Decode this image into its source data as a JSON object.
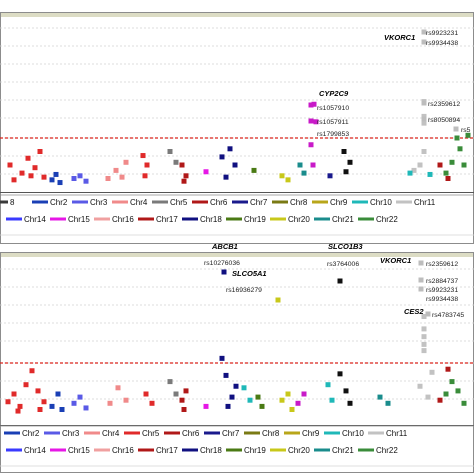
{
  "colors": {
    "threshold": "#d9251c",
    "grid": "#d4d4d4",
    "frame": "#8c8c8c",
    "panel_top_bar": "#dcdcc4",
    "snp_marker": "#bdbdbd"
  },
  "chart_data": [
    {
      "type": "scatter",
      "panel": "top",
      "annotations": [
        {
          "gene": "VKORC1",
          "snps": [
            "rs9923231",
            "rs9934438"
          ]
        },
        {
          "gene": "CYP2C9",
          "snps": [
            "rs1057910",
            "rs1057911",
            "rs1799853"
          ]
        },
        {
          "gene": "",
          "snps": [
            "rs2359612",
            "rs8050894",
            "rs5"
          ]
        }
      ],
      "legend": [
        {
          "name": "8",
          "color": "#3a3a3a"
        },
        {
          "name": "Chr2",
          "color": "#1a3fb5"
        },
        {
          "name": "Chr3",
          "color": "#5a5ae6"
        },
        {
          "name": "Chr4",
          "color": "#f08a8a"
        },
        {
          "name": "Chr5",
          "color": "#7a7a7a"
        },
        {
          "name": "Chr6",
          "color": "#b01818"
        },
        {
          "name": "Chr7",
          "color": "#1a1a8c"
        },
        {
          "name": "Chr8",
          "color": "#7a7a14"
        },
        {
          "name": "Chr9",
          "color": "#b8a61a"
        },
        {
          "name": "Chr10",
          "color": "#1fb8b8"
        },
        {
          "name": "Chr11",
          "color": "#c2c2c2"
        },
        {
          "name": "Chr14",
          "color": "#3a3aff"
        },
        {
          "name": "Chr15",
          "color": "#e617e6"
        },
        {
          "name": "Chr16",
          "color": "#f0a0a0"
        },
        {
          "name": "Chr17",
          "color": "#b01818"
        },
        {
          "name": "Chr18",
          "color": "#101080"
        },
        {
          "name": "Chr19",
          "color": "#4a7a14"
        },
        {
          "name": "Chr20",
          "color": "#c8c81a"
        },
        {
          "name": "Chr21",
          "color": "#1a8c8c"
        },
        {
          "name": "Chr22",
          "color": "#3a8c3a"
        }
      ],
      "series": [
        {
          "chrom": "Chr1",
          "color": "#e02a2a",
          "points": [
            [
              10,
              2.0
            ],
            [
              22,
              1.4
            ],
            [
              28,
              2.5
            ],
            [
              35,
              1.8
            ],
            [
              40,
              3.0
            ],
            [
              44,
              1.1
            ],
            [
              14,
              0.9
            ],
            [
              31,
              1.2
            ]
          ]
        },
        {
          "chrom": "Chr2",
          "color": "#1a3fb5",
          "points": [
            [
              52,
              0.9
            ],
            [
              56,
              1.3
            ],
            [
              60,
              0.7
            ]
          ]
        },
        {
          "chrom": "Chr3",
          "color": "#5a5ae6",
          "points": [
            [
              74,
              1.0
            ],
            [
              80,
              1.2
            ],
            [
              86,
              0.8
            ]
          ]
        },
        {
          "chrom": "Chr4",
          "color": "#f08a8a",
          "points": [
            [
              108,
              1.0
            ],
            [
              116,
              1.6
            ],
            [
              122,
              1.1
            ],
            [
              126,
              2.2
            ]
          ]
        },
        {
          "chrom": "Chr5",
          "color": "#e02a2a",
          "points": [
            [
              143,
              2.7
            ],
            [
              147,
              2.0
            ],
            [
              145,
              1.2
            ]
          ]
        },
        {
          "chrom": "Chr6",
          "color": "#7a7a7a",
          "points": [
            [
              170,
              3.0
            ],
            [
              176,
              2.2
            ]
          ]
        },
        {
          "chrom": "Chr7",
          "color": "#b01818",
          "points": [
            [
              182,
              2.0
            ],
            [
              186,
              1.2
            ],
            [
              184,
              0.8
            ]
          ]
        },
        {
          "chrom": "Chr8",
          "color": "#e617e6",
          "points": [
            [
              206,
              1.5
            ]
          ]
        },
        {
          "chrom": "Chr9",
          "color": "#101080",
          "points": [
            [
              222,
              2.6
            ],
            [
              230,
              3.2
            ],
            [
              235,
              2.0
            ],
            [
              226,
              1.1
            ]
          ]
        },
        {
          "chrom": "Chr10",
          "color": "#4a7a14",
          "points": [
            [
              254,
              1.6
            ]
          ]
        },
        {
          "chrom": "Chr11",
          "color": "#c8c81a",
          "points": [
            [
              282,
              1.2
            ],
            [
              288,
              0.9
            ]
          ]
        },
        {
          "chrom": "Chr12",
          "color": "#1a8c8c",
          "points": [
            [
              300,
              2.0
            ],
            [
              304,
              1.4
            ]
          ]
        },
        {
          "chrom": "Chr13",
          "color": "#c81ac8",
          "points": [
            [
              311,
              3.5
            ],
            [
              314,
              6.5
            ],
            [
              316,
              5.2
            ],
            [
              313,
              2.0
            ]
          ]
        },
        {
          "chrom": "Chr14",
          "color": "#1a1a8c",
          "points": [
            [
              330,
              1.2
            ]
          ]
        },
        {
          "chrom": "Chr15",
          "color": "#101010",
          "points": [
            [
              344,
              3.0
            ],
            [
              350,
              2.2
            ],
            [
              346,
              1.5
            ]
          ]
        },
        {
          "chrom": "Chr16",
          "color": "#c2c2c2",
          "points": [
            [
              424,
              6.7
            ],
            [
              424,
              5.6
            ],
            [
              424,
              5.1
            ],
            [
              424,
              3.0
            ],
            [
              414,
              1.6
            ],
            [
              420,
              2.0
            ]
          ]
        },
        {
          "chrom": "Chr17",
          "color": "#1fb8b8",
          "points": [
            [
              410,
              1.4
            ],
            [
              430,
              1.3
            ]
          ]
        },
        {
          "chrom": "Chr18",
          "color": "#3a8c3a",
          "points": [
            [
              446,
              1.4
            ],
            [
              452,
              2.2
            ],
            [
              457,
              4.0
            ],
            [
              460,
              3.2
            ],
            [
              464,
              2.0
            ],
            [
              468,
              4.2
            ]
          ]
        },
        {
          "chrom": "Chr19",
          "color": "#b01818",
          "points": [
            [
              440,
              2.0
            ],
            [
              448,
              1.0
            ]
          ]
        }
      ]
    },
    {
      "type": "scatter",
      "panel": "bottom",
      "annotations": [
        {
          "gene": "VKORC1",
          "snps": [
            "rs2359612",
            "rs2884737",
            "rs9923231",
            "rs9934438"
          ]
        },
        {
          "gene": "ABCB1",
          "snps": [
            "rs10276036"
          ]
        },
        {
          "gene": "SLCO5A1",
          "snps": [
            "rs16936279"
          ]
        },
        {
          "gene": "SLCO1B3",
          "snps": [
            "rs3764006"
          ]
        },
        {
          "gene": "CES2",
          "snps": [
            "rs4783745"
          ]
        }
      ],
      "legend": [
        {
          "name": "Chr2",
          "color": "#1a3fb5"
        },
        {
          "name": "Chr3",
          "color": "#5a5ae6"
        },
        {
          "name": "Chr4",
          "color": "#f08a8a"
        },
        {
          "name": "Chr5",
          "color": "#e02a2a"
        },
        {
          "name": "Chr6",
          "color": "#b01818"
        },
        {
          "name": "Chr7",
          "color": "#1a1a8c"
        },
        {
          "name": "Chr8",
          "color": "#7a7a14"
        },
        {
          "name": "Chr9",
          "color": "#b8a61a"
        },
        {
          "name": "Chr10",
          "color": "#1fb8b8"
        },
        {
          "name": "Chr11",
          "color": "#c2c2c2"
        },
        {
          "name": "Chr14",
          "color": "#3a3aff"
        },
        {
          "name": "Chr15",
          "color": "#e617e6"
        },
        {
          "name": "Chr16",
          "color": "#f0a0a0"
        },
        {
          "name": "Chr17",
          "color": "#b01818"
        },
        {
          "name": "Chr18",
          "color": "#101080"
        },
        {
          "name": "Chr19",
          "color": "#4a7a14"
        },
        {
          "name": "Chr20",
          "color": "#c8c81a"
        },
        {
          "name": "Chr21",
          "color": "#1a8c8c"
        },
        {
          "name": "Chr22",
          "color": "#3a8c3a"
        }
      ],
      "series": [
        {
          "chrom": "Chr1",
          "color": "#e02a2a",
          "points": [
            [
              8,
              1.5
            ],
            [
              14,
              2.0
            ],
            [
              20,
              1.2
            ],
            [
              26,
              2.6
            ],
            [
              32,
              3.5
            ],
            [
              38,
              2.2
            ],
            [
              44,
              1.5
            ],
            [
              18,
              0.9
            ],
            [
              40,
              1.0
            ]
          ]
        },
        {
          "chrom": "Chr2",
          "color": "#1a3fb5",
          "points": [
            [
              52,
              1.2
            ],
            [
              58,
              2.0
            ],
            [
              62,
              1.0
            ]
          ]
        },
        {
          "chrom": "Chr3",
          "color": "#5a5ae6",
          "points": [
            [
              74,
              1.4
            ],
            [
              80,
              1.8
            ],
            [
              86,
              1.1
            ]
          ]
        },
        {
          "chrom": "Chr4",
          "color": "#f08a8a",
          "points": [
            [
              110,
              1.4
            ],
            [
              118,
              2.4
            ],
            [
              126,
              1.6
            ]
          ]
        },
        {
          "chrom": "Chr5",
          "color": "#e02a2a",
          "points": [
            [
              146,
              2.0
            ],
            [
              152,
              1.4
            ]
          ]
        },
        {
          "chrom": "Chr6",
          "color": "#7a7a7a",
          "points": [
            [
              170,
              2.8
            ],
            [
              176,
              2.0
            ]
          ]
        },
        {
          "chrom": "Chr7",
          "color": "#b01818",
          "points": [
            [
              182,
              1.6
            ],
            [
              186,
              2.2
            ],
            [
              184,
              1.0
            ]
          ]
        },
        {
          "chrom": "Chr8",
          "color": "#e617e6",
          "points": [
            [
              206,
              1.2
            ]
          ]
        },
        {
          "chrom": "Chr9",
          "color": "#101080",
          "points": [
            [
              222,
              4.3
            ],
            [
              226,
              3.2
            ],
            [
              232,
              1.8
            ],
            [
              236,
              2.5
            ],
            [
              228,
              1.2
            ]
          ]
        },
        {
          "chrom": "Chr10",
          "color": "#1fb8b8",
          "points": [
            [
              244,
              2.4
            ],
            [
              250,
              1.6
            ]
          ]
        },
        {
          "chrom": "Chr11",
          "color": "#4a7a14",
          "points": [
            [
              258,
              1.8
            ],
            [
              262,
              1.2
            ]
          ]
        },
        {
          "chrom": "Chr12",
          "color": "#c8c81a",
          "points": [
            [
              282,
              1.6
            ],
            [
              288,
              2.0
            ],
            [
              292,
              1.0
            ]
          ]
        },
        {
          "chrom": "Chr13",
          "color": "#c81ac8",
          "points": [
            [
              298,
              1.4
            ],
            [
              304,
              2.0
            ]
          ]
        },
        {
          "chrom": "Chr14",
          "color": "#1fb8b8",
          "points": [
            [
              328,
              2.6
            ],
            [
              332,
              1.6
            ]
          ]
        },
        {
          "chrom": "Chr15",
          "color": "#101010",
          "points": [
            [
              340,
              3.3
            ],
            [
              346,
              2.2
            ],
            [
              350,
              1.4
            ]
          ]
        },
        {
          "chrom": "Chr16",
          "color": "#1a8c8c",
          "points": [
            [
              380,
              1.8
            ],
            [
              388,
              1.4
            ]
          ]
        },
        {
          "chrom": "Chr17",
          "color": "#c2c2c2",
          "points": [
            [
              424,
              7.0
            ],
            [
              424,
              6.2
            ],
            [
              424,
              5.7
            ],
            [
              424,
              5.2
            ],
            [
              424,
              4.8
            ],
            [
              420,
              2.5
            ],
            [
              428,
              1.8
            ],
            [
              432,
              3.4
            ]
          ]
        },
        {
          "chrom": "Chr18",
          "color": "#3a8c3a",
          "points": [
            [
              446,
              2.0
            ],
            [
              452,
              2.8
            ],
            [
              458,
              2.2
            ],
            [
              464,
              1.4
            ]
          ]
        },
        {
          "chrom": "Chr19",
          "color": "#b01818",
          "points": [
            [
              440,
              1.6
            ],
            [
              448,
              3.6
            ]
          ]
        }
      ]
    }
  ]
}
